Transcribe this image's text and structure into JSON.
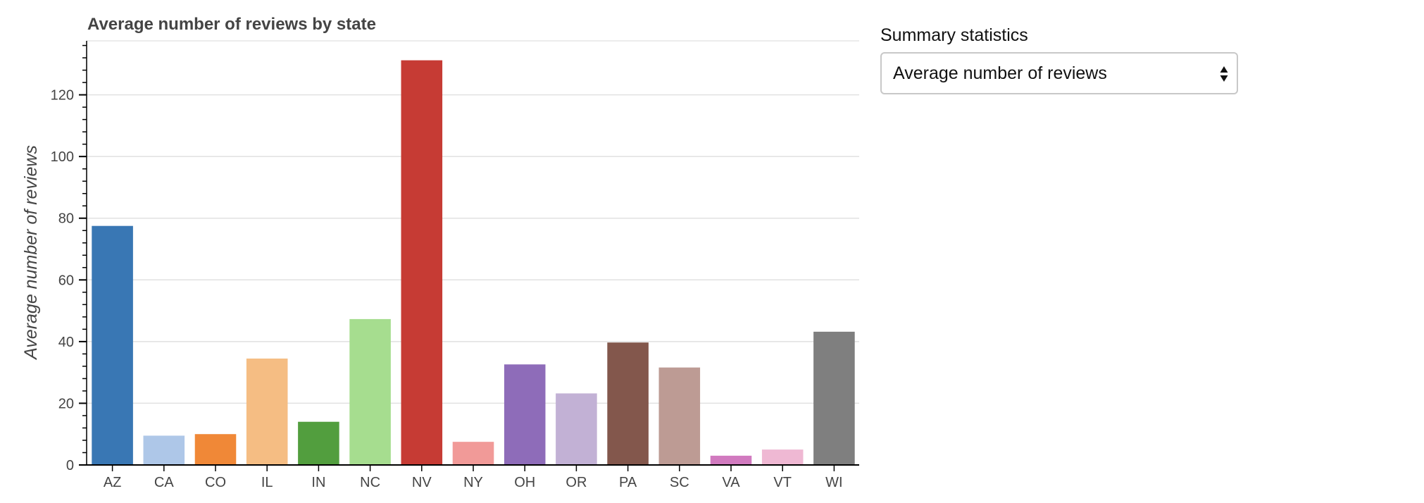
{
  "colors": {
    "text": "#444444",
    "grid": "#e1e1e1",
    "frame": "#e5e5e5",
    "axis": "#000000"
  },
  "chart_data": {
    "type": "bar",
    "title": "Average number of reviews by state",
    "xlabel": "",
    "ylabel": "Average number of reviews",
    "categories": [
      "AZ",
      "CA",
      "CO",
      "IL",
      "IN",
      "NC",
      "NV",
      "NY",
      "OH",
      "OR",
      "PA",
      "SC",
      "VA",
      "VT",
      "WI"
    ],
    "values": [
      77.5,
      9.5,
      10.0,
      34.5,
      14.0,
      47.3,
      131.2,
      7.5,
      32.6,
      23.2,
      39.7,
      31.6,
      3.0,
      5.0,
      43.2
    ],
    "colors": [
      "#3977b4",
      "#aec7e8",
      "#f08837",
      "#f5bd83",
      "#529e3e",
      "#a6dd8f",
      "#c63b34",
      "#f19a98",
      "#8e6cb9",
      "#c2b1d5",
      "#83574c",
      "#bd9b94",
      "#d17abf",
      "#efb8d3",
      "#7f7f7f"
    ],
    "ylim": [
      0,
      137.5
    ],
    "yticks": [
      0,
      20,
      40,
      60,
      80,
      100,
      120
    ],
    "ytick_labels": [
      "0",
      "20",
      "40",
      "60",
      "80",
      "100",
      "120"
    ],
    "minor_tick_step": 4,
    "grid": true,
    "legend": "none"
  },
  "controls": {
    "summary_label": "Summary statistics",
    "summary_select": {
      "selected": "Average number of reviews",
      "icon": "select-arrows-icon"
    }
  }
}
